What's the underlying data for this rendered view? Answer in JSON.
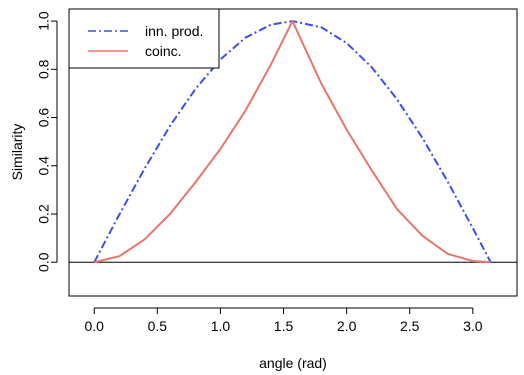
{
  "chart_data": {
    "type": "line",
    "title": "",
    "xlabel": "angle (rad)",
    "ylabel": "Similarity",
    "xlim": [
      -0.2,
      3.35
    ],
    "ylim": [
      -0.14,
      1.05
    ],
    "x_ticks": [
      0.0,
      0.5,
      1.0,
      1.5,
      2.0,
      2.5,
      3.0
    ],
    "x_tick_labels": [
      "0.0",
      "0.5",
      "1.0",
      "1.5",
      "2.0",
      "2.5",
      "3.0"
    ],
    "y_ticks": [
      0.0,
      0.2,
      0.4,
      0.6,
      0.8,
      1.0
    ],
    "y_tick_labels": [
      "0.0",
      "0.2",
      "0.4",
      "0.6",
      "0.8",
      "1.0"
    ],
    "hline": 0,
    "legend_position": "top-left",
    "grid": false,
    "series": [
      {
        "name": "inn. prod.",
        "color": "#3b4ef0",
        "style": "dashdot",
        "x": [
          0.0,
          0.2,
          0.4,
          0.6,
          0.8,
          1.0,
          1.2,
          1.4,
          1.5708,
          1.8,
          2.0,
          2.2,
          2.4,
          2.6,
          2.8,
          3.0,
          3.1416
        ],
        "y": [
          0.0,
          0.199,
          0.389,
          0.565,
          0.717,
          0.841,
          0.932,
          0.985,
          1.0,
          0.974,
          0.909,
          0.808,
          0.675,
          0.516,
          0.335,
          0.141,
          0.0
        ]
      },
      {
        "name": "coinc.",
        "color": "#e8756b",
        "style": "solid",
        "x": [
          0.0,
          0.2,
          0.4,
          0.6,
          0.8,
          1.0,
          1.2,
          1.4,
          1.5708,
          1.8,
          2.0,
          2.2,
          2.4,
          2.6,
          2.8,
          3.0,
          3.1416
        ],
        "y": [
          0.0,
          0.025,
          0.095,
          0.2,
          0.33,
          0.47,
          0.63,
          0.82,
          1.0,
          0.74,
          0.55,
          0.38,
          0.22,
          0.11,
          0.035,
          0.005,
          0.0
        ]
      }
    ]
  }
}
